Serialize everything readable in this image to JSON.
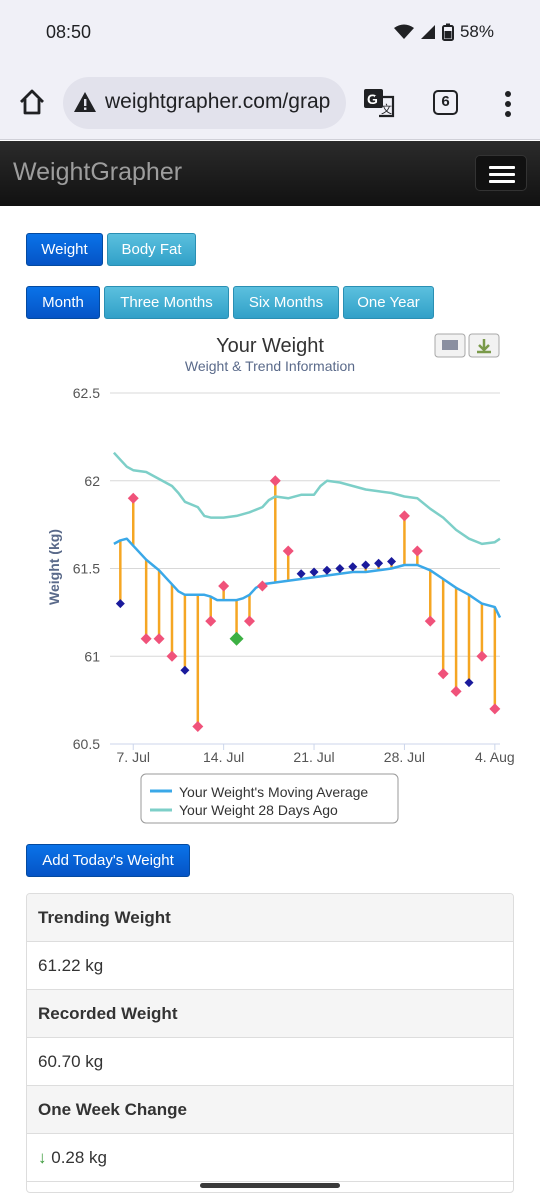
{
  "status": {
    "time": "08:50",
    "battery": "58%"
  },
  "browser": {
    "url": "weightgrapher.com/grap",
    "tab_count": "6"
  },
  "app": {
    "brand": "WeightGrapher"
  },
  "metric_tabs": [
    "Weight",
    "Body Fat"
  ],
  "range_tabs": [
    "Month",
    "Three Months",
    "Six Months",
    "One Year"
  ],
  "chart_data": {
    "type": "line",
    "title": "Your Weight",
    "subtitle": "Weight & Trend Information",
    "ylabel": "Weight (kg)",
    "xlabel": "",
    "ylim": [
      60.5,
      62.5
    ],
    "y_ticks": [
      "62.5",
      "62",
      "61.5",
      "61",
      "60.5"
    ],
    "x_ticks": [
      {
        "label": "7. Jul",
        "day": 7
      },
      {
        "label": "14. Jul",
        "day": 14
      },
      {
        "label": "21. Jul",
        "day": 21
      },
      {
        "label": "28. Jul",
        "day": 28
      },
      {
        "label": "4. Aug",
        "day": 35
      }
    ],
    "x_range_days": [
      5.2,
      35.4
    ],
    "x_unit": "day of July (Aug 4 = 35)",
    "grid": true,
    "legend_position": "bottom",
    "series": [
      {
        "name": "Your Weight's Moving Average",
        "color": "#3aa8e8",
        "points": [
          [
            5.5,
            61.64
          ],
          [
            6,
            61.66
          ],
          [
            6.5,
            61.67
          ],
          [
            7,
            61.63
          ],
          [
            7.5,
            61.59
          ],
          [
            8,
            61.55
          ],
          [
            8.5,
            61.52
          ],
          [
            9,
            61.49
          ],
          [
            9.5,
            61.45
          ],
          [
            10,
            61.41
          ],
          [
            10.5,
            61.37
          ],
          [
            11,
            61.35
          ],
          [
            12,
            61.35
          ],
          [
            12.5,
            61.35
          ],
          [
            13,
            61.34
          ],
          [
            13.5,
            61.32
          ],
          [
            14,
            61.32
          ],
          [
            14.5,
            61.32
          ],
          [
            15,
            61.32
          ],
          [
            15.5,
            61.33
          ],
          [
            16,
            61.35
          ],
          [
            16.5,
            61.39
          ],
          [
            17,
            61.41
          ],
          [
            18,
            61.42
          ],
          [
            19,
            61.43
          ],
          [
            20,
            61.44
          ],
          [
            21,
            61.45
          ],
          [
            22,
            61.46
          ],
          [
            23,
            61.47
          ],
          [
            24,
            61.48
          ],
          [
            25,
            61.48
          ],
          [
            26,
            61.49
          ],
          [
            27,
            61.5
          ],
          [
            28,
            61.52
          ],
          [
            29,
            61.52
          ],
          [
            30,
            61.49
          ],
          [
            31,
            61.44
          ],
          [
            32,
            61.39
          ],
          [
            33,
            61.35
          ],
          [
            34,
            61.3
          ],
          [
            35,
            61.28
          ],
          [
            35.4,
            61.22
          ]
        ]
      },
      {
        "name": "Your Weight 28 Days Ago",
        "color": "#7dcfc8",
        "points": [
          [
            5.5,
            62.16
          ],
          [
            6,
            62.12
          ],
          [
            6.5,
            62.08
          ],
          [
            7,
            62.06
          ],
          [
            8,
            62.05
          ],
          [
            9,
            62.01
          ],
          [
            10,
            61.97
          ],
          [
            10.5,
            61.93
          ],
          [
            11,
            61.88
          ],
          [
            12,
            61.85
          ],
          [
            12.5,
            61.8
          ],
          [
            13,
            61.79
          ],
          [
            14,
            61.79
          ],
          [
            15,
            61.8
          ],
          [
            16,
            61.82
          ],
          [
            17,
            61.85
          ],
          [
            17.5,
            61.89
          ],
          [
            18,
            61.91
          ],
          [
            19,
            61.9
          ],
          [
            20,
            61.92
          ],
          [
            21,
            61.92
          ],
          [
            21.5,
            61.97
          ],
          [
            22,
            62.0
          ],
          [
            23,
            61.99
          ],
          [
            24,
            61.97
          ],
          [
            25,
            61.95
          ],
          [
            26,
            61.94
          ],
          [
            27,
            61.93
          ],
          [
            28,
            61.91
          ],
          [
            29,
            61.9
          ],
          [
            30,
            61.84
          ],
          [
            31,
            61.79
          ],
          [
            32,
            61.72
          ],
          [
            33,
            61.67
          ],
          [
            34,
            61.64
          ],
          [
            35,
            61.65
          ],
          [
            35.4,
            61.67
          ]
        ]
      }
    ],
    "weigh_ins": [
      {
        "day": 6,
        "value": 61.3,
        "marker": "below"
      },
      {
        "day": 7,
        "value": 61.9,
        "marker": "above"
      },
      {
        "day": 8,
        "value": 61.1,
        "marker": "above"
      },
      {
        "day": 9,
        "value": 61.1,
        "marker": "above"
      },
      {
        "day": 10,
        "value": 61.0,
        "marker": "above"
      },
      {
        "day": 11,
        "value": 60.92,
        "marker": "below"
      },
      {
        "day": 12,
        "value": 60.6,
        "marker": "above"
      },
      {
        "day": 13,
        "value": 61.2,
        "marker": "above"
      },
      {
        "day": 14,
        "value": 61.4,
        "marker": "above"
      },
      {
        "day": 15,
        "value": 61.1,
        "marker": "target"
      },
      {
        "day": 16,
        "value": 61.2,
        "marker": "above"
      },
      {
        "day": 17,
        "value": 61.4,
        "marker": "above"
      },
      {
        "day": 18,
        "value": 62.0,
        "marker": "above"
      },
      {
        "day": 19,
        "value": 61.6,
        "marker": "above"
      },
      {
        "day": 20,
        "value": 61.47,
        "marker": "below"
      },
      {
        "day": 21,
        "value": 61.48,
        "marker": "below"
      },
      {
        "day": 22,
        "value": 61.49,
        "marker": "below"
      },
      {
        "day": 23,
        "value": 61.5,
        "marker": "below"
      },
      {
        "day": 24,
        "value": 61.51,
        "marker": "below"
      },
      {
        "day": 25,
        "value": 61.52,
        "marker": "below"
      },
      {
        "day": 26,
        "value": 61.53,
        "marker": "below"
      },
      {
        "day": 27,
        "value": 61.54,
        "marker": "below"
      },
      {
        "day": 28,
        "value": 61.8,
        "marker": "above"
      },
      {
        "day": 29,
        "value": 61.6,
        "marker": "above"
      },
      {
        "day": 30,
        "value": 61.2,
        "marker": "above"
      },
      {
        "day": 31,
        "value": 60.9,
        "marker": "above"
      },
      {
        "day": 32,
        "value": 60.8,
        "marker": "above"
      },
      {
        "day": 33,
        "value": 60.85,
        "marker": "below"
      },
      {
        "day": 34,
        "value": 61.0,
        "marker": "above"
      },
      {
        "day": 35,
        "value": 60.7,
        "marker": "above"
      }
    ],
    "colors": {
      "above": "#f0527a",
      "below": "#1a1a9c",
      "target": "#3cb043",
      "stem": "#f5a623"
    }
  },
  "add_button": "Add Today's Weight",
  "stats": [
    {
      "label": "Trending Weight",
      "value": "61.22 kg"
    },
    {
      "label": "Recorded Weight",
      "value": "60.70 kg"
    },
    {
      "label": "One Week Change",
      "arrow": "↓",
      "value": "0.28 kg"
    }
  ]
}
